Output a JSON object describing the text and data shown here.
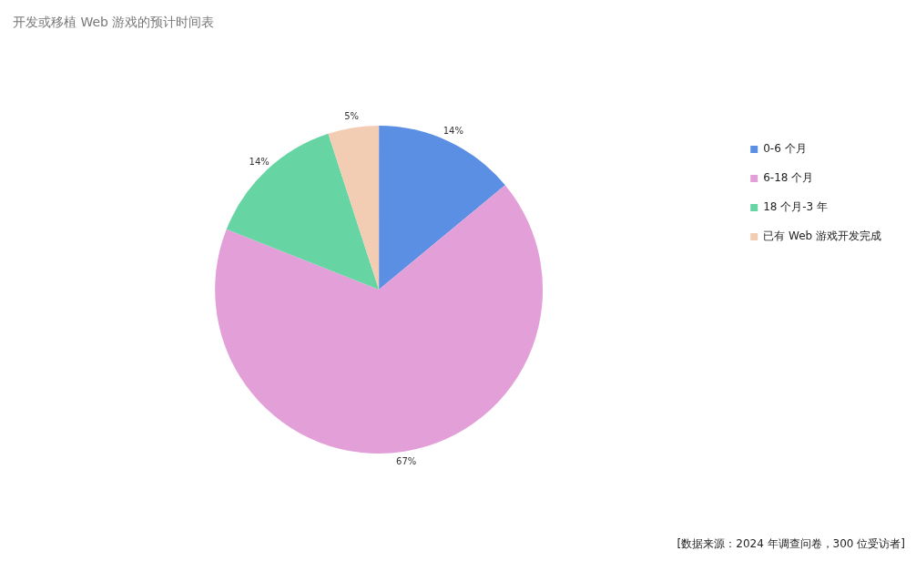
{
  "chart_data": {
    "type": "pie",
    "title": "开发或移植 Web 游戏的预计时间表",
    "categories": [
      "0-6 个月",
      "6-18 个月",
      "18 个月-3 年",
      "已有 Web 游戏开发完成"
    ],
    "values": [
      14,
      67,
      14,
      5
    ],
    "value_labels": [
      "14%",
      "67%",
      "14%",
      "5%"
    ],
    "colors": [
      "#5b8fe3",
      "#e3a0d8",
      "#66d4a3",
      "#f2cdb4"
    ],
    "legend": "top right",
    "annotations": [
      "[数据来源：2024 年调查问卷，300 位受访者]"
    ]
  }
}
